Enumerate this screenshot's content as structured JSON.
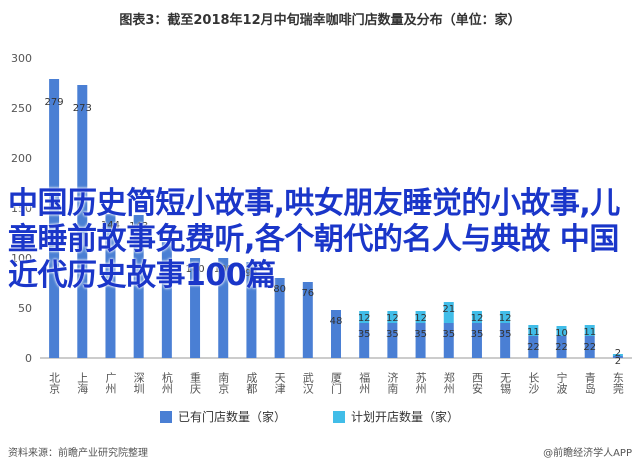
{
  "chart_data": {
    "type": "bar",
    "title": "图表3：截至2018年12月中旬瑞幸咖啡门店数量及分布（单位：家）",
    "categories": [
      "北京",
      "上海",
      "广州",
      "深圳",
      "杭州",
      "重庆",
      "南京",
      "成都",
      "天津",
      "武汉",
      "厦门",
      "福州",
      "济南",
      "苏州",
      "郑州",
      "西安",
      "无锡",
      "长沙",
      "宁波",
      "青岛",
      "东莞"
    ],
    "series": [
      {
        "name": "已有门店数量（家）",
        "color": "#4a7fd4",
        "values": [
          279,
          273,
          144,
          143,
          116,
          100,
          100,
          96,
          80,
          76,
          48,
          35,
          35,
          35,
          35,
          35,
          35,
          22,
          22,
          22,
          2
        ]
      },
      {
        "name": "计划开店数量（家）",
        "color": "#41bde8",
        "values": [
          0,
          0,
          0,
          0,
          0,
          0,
          0,
          0,
          0,
          0,
          0,
          12,
          12,
          12,
          21,
          12,
          12,
          11,
          10,
          11,
          2
        ]
      }
    ],
    "stack_labels": [
      {
        "series": 0,
        "values": [
          "279",
          "273",
          "144",
          "143",
          "",
          "100",
          "100",
          "96",
          "80",
          "76",
          "48",
          "35",
          "35",
          "35",
          "35",
          "35",
          "35",
          "22",
          "22",
          "22",
          "2"
        ]
      },
      {
        "series": 1,
        "values": [
          "",
          "",
          "",
          "",
          "",
          "",
          "",
          "",
          "",
          "",
          "",
          "12",
          "12",
          "12",
          "21",
          "12",
          "12",
          "11",
          "10",
          "11",
          "2"
        ]
      }
    ],
    "yticks": [
      0,
      50,
      100,
      150,
      200,
      250,
      300
    ],
    "ylim": [
      0,
      300
    ],
    "grid": false,
    "legend_position": "bottom",
    "source": "资料来源：前瞻产业研究院整理",
    "credit": "@前瞻经济学人APP"
  },
  "overlay_text": "中国历史简短小故事,哄女朋友睡觉的小故事,儿童睡前故事免费听,各个朝代的名人与典故 中国近代历史故事100篇",
  "colors": {
    "bar_existing": "#4a7fd4",
    "bar_planned": "#41bde8",
    "overlay_text": "#1a36c9"
  }
}
